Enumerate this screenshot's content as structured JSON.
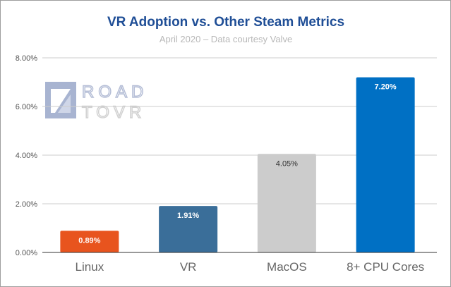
{
  "chart_data": {
    "type": "bar",
    "title": "VR Adoption vs. Other Steam Metrics",
    "subtitle": "April 2020 – Data courtesy Valve",
    "categories": [
      "Linux",
      "VR",
      "MacOS",
      "8+ CPU Cores"
    ],
    "values": [
      0.89,
      1.91,
      4.05,
      7.2
    ],
    "data_labels": [
      "0.89%",
      "1.91%",
      "4.05%",
      "7.20%"
    ],
    "colors": [
      "#e8541e",
      "#3a6e99",
      "#cccccc",
      "#0070c4"
    ],
    "label_colors": [
      "#ffffff",
      "#ffffff",
      "#333333",
      "#ffffff"
    ],
    "ylim": [
      0,
      8
    ],
    "yticks": [
      0,
      2,
      4,
      6,
      8
    ],
    "ytick_labels": [
      "0.00%",
      "2.00%",
      "4.00%",
      "6.00%",
      "8.00%"
    ],
    "grid": true,
    "legend": "none",
    "title_color": "#1f4e96",
    "watermark": {
      "lines": [
        "ROAD",
        "TOVR"
      ]
    }
  }
}
